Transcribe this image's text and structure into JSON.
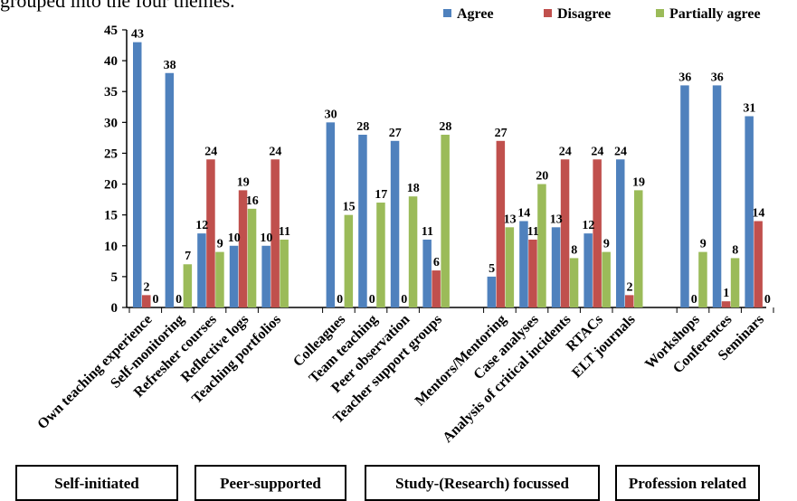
{
  "top_text": "grouped into the four themes.",
  "chart_data": {
    "type": "bar",
    "ylim": [
      0,
      45
    ],
    "yticks": [
      0,
      5,
      10,
      15,
      20,
      25,
      30,
      35,
      40,
      45
    ],
    "legend_position": "top-right",
    "grid": false,
    "colors": [
      "#4f81bd",
      "#c0504d",
      "#9bbb59"
    ],
    "categories": [
      "Own teaching experience",
      "Self-monitoring",
      "Refresher courses",
      "Reflective logs",
      "Teaching portfolios",
      "Colleagues",
      "Team teaching",
      "Peer observation",
      "Teacher support groups",
      "Mentors/Mentoring",
      "Case analyses",
      "Analysis of critical incidents",
      "RTACs",
      "ELT journals",
      "Workshops",
      "Conferences",
      "Seminars"
    ],
    "series": [
      {
        "name": "Agree",
        "values": [
          43,
          38,
          12,
          10,
          10,
          30,
          28,
          27,
          11,
          5,
          14,
          13,
          12,
          24,
          36,
          36,
          31
        ]
      },
      {
        "name": "Disagree",
        "values": [
          2,
          0,
          24,
          19,
          24,
          0,
          0,
          0,
          6,
          27,
          11,
          24,
          24,
          2,
          0,
          1,
          14
        ]
      },
      {
        "name": "Partially agree",
        "values": [
          0,
          7,
          9,
          16,
          11,
          15,
          17,
          18,
          28,
          13,
          20,
          8,
          9,
          19,
          9,
          8,
          0
        ]
      }
    ],
    "groups": [
      {
        "label": "Self-initiated",
        "start": 0,
        "end": 4
      },
      {
        "label": "Peer-supported",
        "start": 5,
        "end": 8
      },
      {
        "label": "Study-(Research) focussed",
        "start": 9,
        "end": 13
      },
      {
        "label": "Profession related",
        "start": 14,
        "end": 16
      }
    ]
  }
}
